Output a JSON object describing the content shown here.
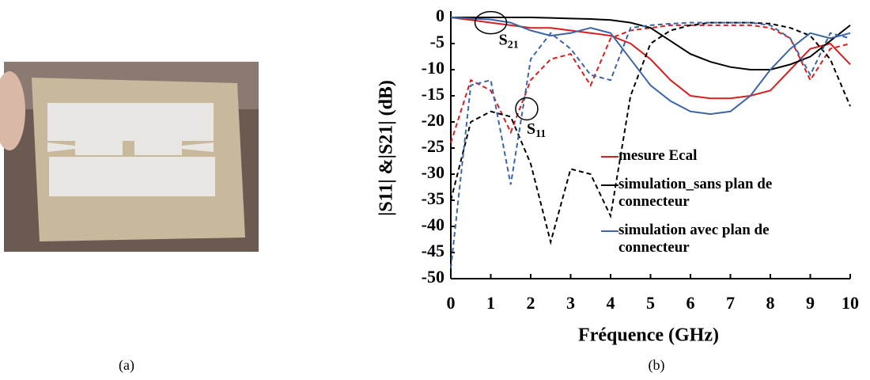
{
  "caption_a": "(a)",
  "chart_data": {
    "type": "line",
    "caption": "(b)",
    "xlabel": "Fréquence (GHz)",
    "ylabel": "|S11| &|S21| (dB)",
    "xlim": [
      0,
      10
    ],
    "xticks": [
      0,
      1,
      2,
      3,
      4,
      5,
      6,
      7,
      8,
      9,
      10
    ],
    "ylim": [
      -50,
      0
    ],
    "yticks": [
      0,
      -5,
      -10,
      -15,
      -20,
      -25,
      -30,
      -35,
      -40,
      -45,
      -50
    ],
    "annotations": [
      {
        "base": "S",
        "sub": "21"
      },
      {
        "base": "S",
        "sub": "11"
      }
    ],
    "x": [
      0,
      0.5,
      1,
      1.5,
      2,
      2.5,
      3,
      3.5,
      4,
      4.5,
      5,
      5.5,
      6,
      6.5,
      7,
      7.5,
      8,
      8.5,
      9,
      9.5,
      10
    ],
    "series": [
      {
        "name": "mesure Ecal",
        "color": "#d42020",
        "values": [
          0,
          -0.5,
          -1,
          -1.5,
          -2,
          -2,
          -2.5,
          -3,
          -3.5,
          -5,
          -8,
          -12,
          -15,
          -15.5,
          -15.5,
          -15,
          -14,
          -10,
          -6,
          -5,
          -9
        ],
        "s11_values": [
          -24,
          -12,
          -14,
          -22,
          -12,
          -8,
          -7,
          -13,
          -4,
          -2.5,
          -2,
          -1.5,
          -1.5,
          -1.5,
          -1.5,
          -1.5,
          -2,
          -4,
          -12,
          -6,
          -5
        ]
      },
      {
        "name": "simulation_sans plan de connecteur",
        "color": "#000000",
        "values": [
          0,
          0,
          0,
          0,
          0,
          -0.1,
          -0.2,
          -0.3,
          -0.5,
          -1,
          -2,
          -4.5,
          -7,
          -8.5,
          -9.5,
          -10,
          -10,
          -9,
          -7.5,
          -4.5,
          -1.5
        ],
        "s11_values": [
          -35,
          -20,
          -18,
          -19,
          -28,
          -43,
          -29,
          -30,
          -38,
          -15,
          -5,
          -2.5,
          -1.5,
          -1,
          -1,
          -1,
          -1.2,
          -2,
          -3.5,
          -8,
          -17
        ]
      },
      {
        "name": "simulation avec plan de connecteur",
        "color": "#3a66a8",
        "values": [
          0,
          -0.2,
          -0.4,
          -1,
          -2.5,
          -3.5,
          -3,
          -2,
          -3,
          -8,
          -13,
          -16,
          -18,
          -18.5,
          -18,
          -15,
          -10,
          -6,
          -3,
          -4,
          -3
        ],
        "s11_values": [
          -48,
          -13,
          -12,
          -32,
          -8,
          -3,
          -6,
          -11,
          -12,
          -2,
          -1.5,
          -1.2,
          -1,
          -1,
          -1,
          -1,
          -1.5,
          -4,
          -11,
          -3,
          -4
        ]
      }
    ]
  }
}
